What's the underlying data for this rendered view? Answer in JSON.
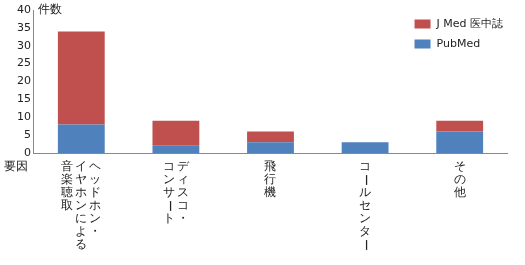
{
  "chart_data": {
    "type": "bar",
    "stacked": true,
    "xlabel": "要因",
    "ylabel": "件数",
    "categories": [
      "ヘッドホン・イヤホンによる音楽聴取",
      "ディスコ・コンサート",
      "飛行機",
      "コールセンター",
      "その他"
    ],
    "series": [
      {
        "name": "PubMed",
        "color": "#4f81bd",
        "values": [
          8,
          2,
          3,
          3,
          6
        ]
      },
      {
        "name": "J Med 医中誌",
        "color": "#c0504d",
        "values": [
          26,
          7,
          3,
          0,
          3
        ]
      }
    ],
    "ylim": [
      0,
      40
    ],
    "yticks": [
      0,
      5,
      10,
      15,
      20,
      25,
      30,
      35,
      40
    ],
    "grid": false,
    "legend": "upper right"
  }
}
